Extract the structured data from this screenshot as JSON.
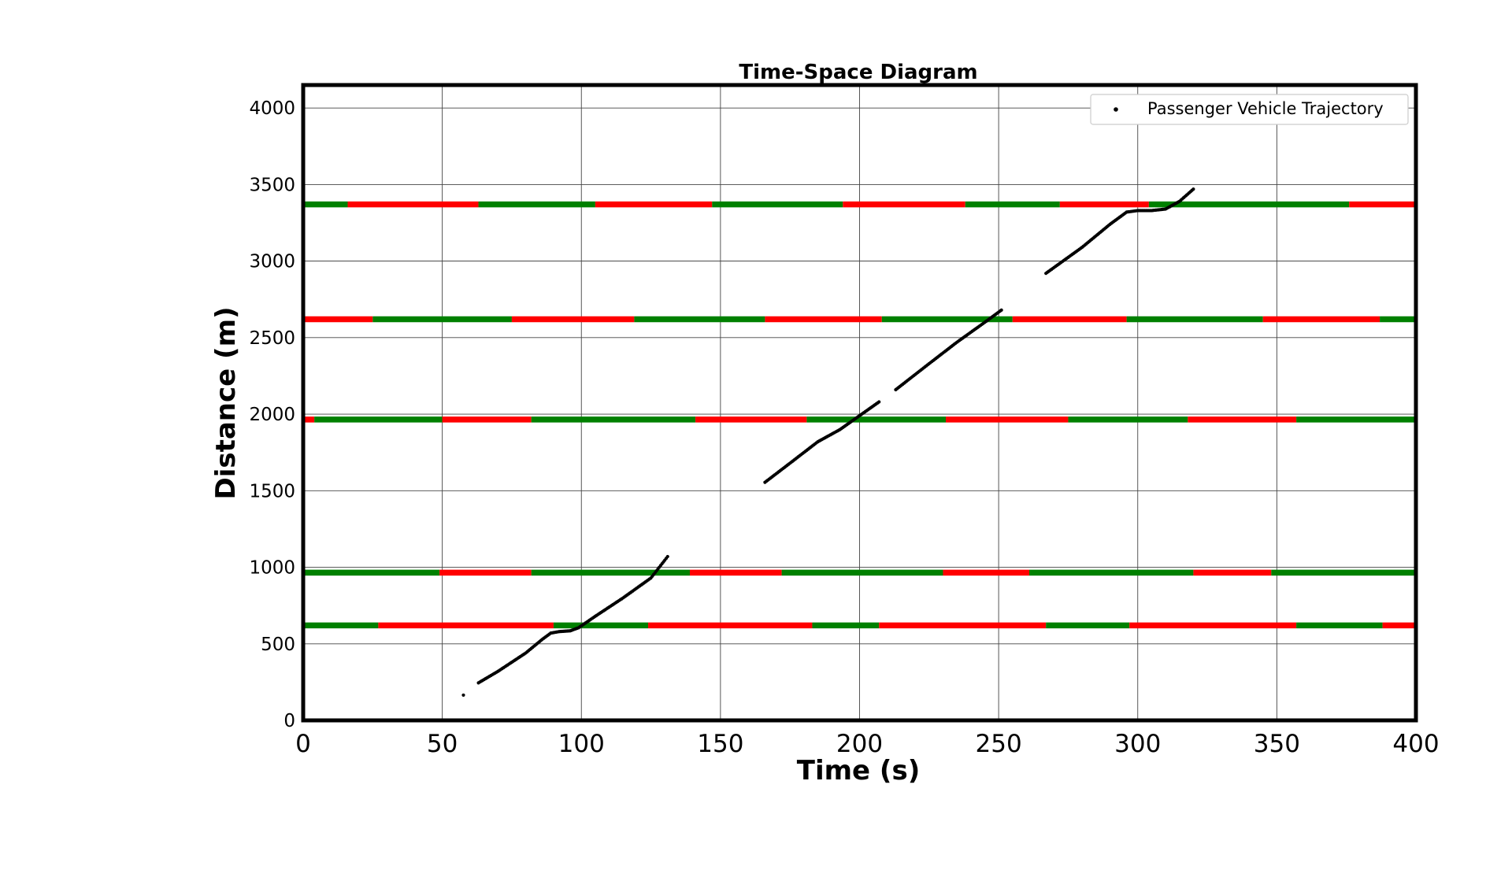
{
  "chart_data": {
    "type": "scatter",
    "title": "Time-Space Diagram",
    "xlabel": "Time (s)",
    "ylabel": "Distance (m)",
    "xlim": [
      0,
      400
    ],
    "ylim": [
      0,
      4150
    ],
    "xticks": [
      0,
      50,
      100,
      150,
      200,
      250,
      300,
      350,
      400
    ],
    "yticks": [
      0,
      500,
      1000,
      1500,
      2000,
      2500,
      3000,
      3500,
      4000
    ],
    "grid": true,
    "legend": {
      "position": "top-right",
      "entries": [
        "Passenger Vehicle Trajectory"
      ]
    },
    "colors": {
      "trajectory": "#000000",
      "green_phase": "#008000",
      "red_phase": "#ff0000"
    },
    "series": [
      {
        "name": "Passenger Vehicle Trajectory",
        "type": "scatter",
        "segments": [
          [
            [
              57.6,
              165
            ]
          ],
          [
            [
              63,
              245
            ],
            [
              70,
              320
            ],
            [
              80,
              440
            ],
            [
              86,
              530
            ],
            [
              89,
              570
            ],
            [
              92,
              580
            ],
            [
              96,
              585
            ],
            [
              99,
              605
            ],
            [
              105,
              680
            ],
            [
              115,
              800
            ],
            [
              125,
              930
            ],
            [
              131,
              1070
            ]
          ],
          [
            [
              166,
              1555
            ],
            [
              175,
              1680
            ],
            [
              185,
              1820
            ],
            [
              193,
              1900
            ],
            [
              200,
              1990
            ],
            [
              207,
              2080
            ]
          ],
          [
            [
              213,
              2160
            ],
            [
              225,
              2330
            ],
            [
              235,
              2470
            ],
            [
              245,
              2600
            ],
            [
              251,
              2680
            ]
          ],
          [
            [
              267,
              2920
            ],
            [
              280,
              3090
            ],
            [
              290,
              3240
            ],
            [
              296,
              3320
            ],
            [
              300,
              3330
            ],
            [
              305,
              3330
            ],
            [
              310,
              3340
            ],
            [
              315,
              3390
            ],
            [
              320,
              3470
            ]
          ]
        ]
      }
    ],
    "signals": [
      {
        "position": 3370,
        "phases": [
          [
            "green",
            0,
            16
          ],
          [
            "red",
            16,
            63
          ],
          [
            "green",
            63,
            105
          ],
          [
            "red",
            105,
            147
          ],
          [
            "green",
            147,
            194
          ],
          [
            "red",
            194,
            238
          ],
          [
            "green",
            238,
            272
          ],
          [
            "red",
            272,
            304
          ],
          [
            "green",
            304,
            376
          ],
          [
            "red",
            376,
            400
          ]
        ]
      },
      {
        "position": 2620,
        "phases": [
          [
            "red",
            0,
            25
          ],
          [
            "green",
            25,
            75
          ],
          [
            "red",
            75,
            119
          ],
          [
            "green",
            119,
            166
          ],
          [
            "red",
            166,
            208
          ],
          [
            "green",
            208,
            255
          ],
          [
            "red",
            255,
            296
          ],
          [
            "green",
            296,
            345
          ],
          [
            "red",
            345,
            387
          ],
          [
            "green",
            387,
            400
          ]
        ]
      },
      {
        "position": 1965,
        "phases": [
          [
            "red",
            0,
            4
          ],
          [
            "green",
            4,
            50
          ],
          [
            "red",
            50,
            82
          ],
          [
            "green",
            82,
            141
          ],
          [
            "red",
            141,
            181
          ],
          [
            "green",
            181,
            231
          ],
          [
            "red",
            231,
            275
          ],
          [
            "green",
            275,
            318
          ],
          [
            "red",
            318,
            357
          ],
          [
            "green",
            357,
            400
          ]
        ]
      },
      {
        "position": 965,
        "phases": [
          [
            "green",
            0,
            49
          ],
          [
            "red",
            49,
            82
          ],
          [
            "green",
            82,
            139
          ],
          [
            "red",
            139,
            172
          ],
          [
            "green",
            172,
            230
          ],
          [
            "red",
            230,
            261
          ],
          [
            "green",
            261,
            320
          ],
          [
            "red",
            320,
            348
          ],
          [
            "green",
            348,
            400
          ]
        ]
      },
      {
        "position": 620,
        "phases": [
          [
            "green",
            0,
            27
          ],
          [
            "red",
            27,
            90
          ],
          [
            "green",
            90,
            124
          ],
          [
            "red",
            124,
            183
          ],
          [
            "green",
            183,
            207
          ],
          [
            "red",
            207,
            267
          ],
          [
            "green",
            267,
            297
          ],
          [
            "red",
            297,
            357
          ],
          [
            "green",
            357,
            388
          ],
          [
            "red",
            388,
            400
          ]
        ]
      }
    ]
  }
}
